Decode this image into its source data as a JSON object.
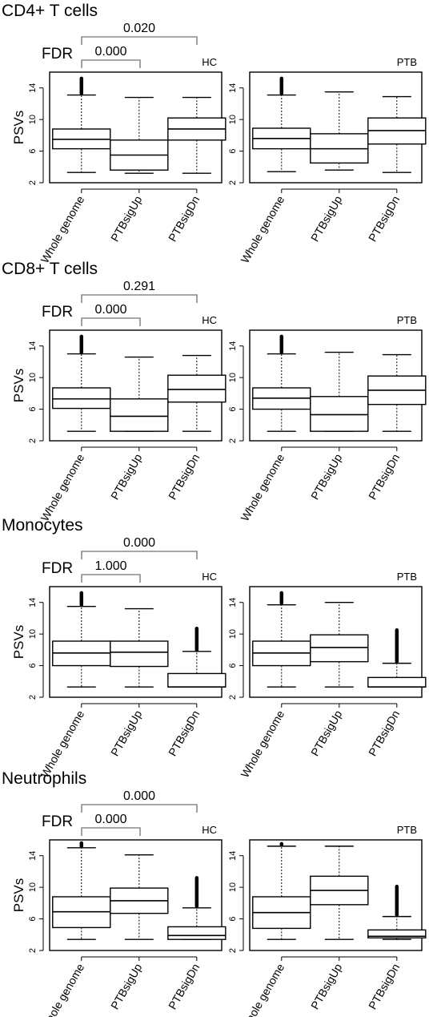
{
  "figure": {
    "fdr_label": "FDR",
    "ylabel": "PSVs",
    "categories": [
      "Whole genome",
      "PTBsigUp",
      "PTBsigDn"
    ],
    "panel_labels": [
      "HC",
      "PTB"
    ],
    "y_ticks": [
      2,
      6,
      10,
      14
    ],
    "ylim": [
      2,
      16
    ]
  },
  "chart_data": [
    {
      "type": "box",
      "title": "CD4+ T cells",
      "fdr": {
        "PTBsigUp": "0.000",
        "PTBsigDn": "0.020"
      },
      "panels": [
        {
          "label": "HC",
          "boxes": [
            {
              "category": "Whole genome",
              "whisker_low": 3.3,
              "q1": 6.3,
              "median": 7.5,
              "q3": 8.8,
              "whisker_high": 13.1,
              "outliers_to": 15.2
            },
            {
              "category": "PTBsigUp",
              "whisker_low": 3.2,
              "q1": 3.6,
              "median": 5.5,
              "q3": 7.4,
              "whisker_high": 12.8
            },
            {
              "category": "PTBsigDn",
              "whisker_low": 3.2,
              "q1": 7.4,
              "median": 8.8,
              "q3": 10.2,
              "whisker_high": 12.8
            }
          ]
        },
        {
          "label": "PTB",
          "boxes": [
            {
              "category": "Whole genome",
              "whisker_low": 3.4,
              "q1": 6.3,
              "median": 7.6,
              "q3": 8.9,
              "whisker_high": 13.1,
              "outliers_to": 15.2
            },
            {
              "category": "PTBsigUp",
              "whisker_low": 3.6,
              "q1": 4.5,
              "median": 6.3,
              "q3": 8.2,
              "whisker_high": 13.5
            },
            {
              "category": "PTBsigDn",
              "whisker_low": 3.3,
              "q1": 6.9,
              "median": 8.6,
              "q3": 10.2,
              "whisker_high": 12.9
            }
          ]
        }
      ]
    },
    {
      "type": "box",
      "title": "CD8+ T cells",
      "fdr": {
        "PTBsigUp": "0.000",
        "PTBsigDn": "0.291"
      },
      "panels": [
        {
          "label": "HC",
          "boxes": [
            {
              "category": "Whole genome",
              "whisker_low": 3.2,
              "q1": 6.1,
              "median": 7.3,
              "q3": 8.7,
              "whisker_high": 13.0,
              "outliers_to": 15.2
            },
            {
              "category": "PTBsigUp",
              "whisker_low": 3.2,
              "q1": 3.2,
              "median": 5.1,
              "q3": 7.3,
              "whisker_high": 12.6
            },
            {
              "category": "PTBsigDn",
              "whisker_low": 3.2,
              "q1": 6.9,
              "median": 8.5,
              "q3": 10.3,
              "whisker_high": 12.8
            }
          ]
        },
        {
          "label": "PTB",
          "boxes": [
            {
              "category": "Whole genome",
              "whisker_low": 3.2,
              "q1": 6.0,
              "median": 7.4,
              "q3": 8.7,
              "whisker_high": 13.0,
              "outliers_to": 15.2
            },
            {
              "category": "PTBsigUp",
              "whisker_low": 3.2,
              "q1": 3.2,
              "median": 5.3,
              "q3": 7.6,
              "whisker_high": 13.2
            },
            {
              "category": "PTBsigDn",
              "whisker_low": 3.2,
              "q1": 6.6,
              "median": 8.4,
              "q3": 10.2,
              "whisker_high": 12.9
            }
          ]
        }
      ]
    },
    {
      "type": "box",
      "title": "Monocytes",
      "fdr": {
        "PTBsigUp": "1.000",
        "PTBsigDn": "0.000"
      },
      "panels": [
        {
          "label": "HC",
          "boxes": [
            {
              "category": "Whole genome",
              "whisker_low": 3.3,
              "q1": 6.0,
              "median": 7.6,
              "q3": 9.1,
              "whisker_high": 13.5,
              "outliers_to": 15.2
            },
            {
              "category": "PTBsigUp",
              "whisker_low": 3.3,
              "q1": 5.9,
              "median": 7.7,
              "q3": 9.1,
              "whisker_high": 13.2
            },
            {
              "category": "PTBsigDn",
              "whisker_low": 3.3,
              "q1": 3.3,
              "median": 3.3,
              "q3": 5.0,
              "whisker_high": 7.8,
              "outliers_to": 10.7
            }
          ]
        },
        {
          "label": "PTB",
          "boxes": [
            {
              "category": "Whole genome",
              "whisker_low": 3.3,
              "q1": 6.0,
              "median": 7.6,
              "q3": 9.1,
              "whisker_high": 13.7,
              "outliers_to": 15.2
            },
            {
              "category": "PTBsigUp",
              "whisker_low": 3.3,
              "q1": 6.5,
              "median": 8.3,
              "q3": 9.9,
              "whisker_high": 14.0
            },
            {
              "category": "PTBsigDn",
              "whisker_low": 3.3,
              "q1": 3.3,
              "median": 3.3,
              "q3": 4.5,
              "whisker_high": 6.3,
              "outliers_to": 10.5
            }
          ]
        }
      ]
    },
    {
      "type": "box",
      "title": "Neutrophils",
      "fdr": {
        "PTBsigUp": "0.000",
        "PTBsigDn": "0.000"
      },
      "panels": [
        {
          "label": "HC",
          "boxes": [
            {
              "category": "Whole genome",
              "whisker_low": 3.4,
              "q1": 4.9,
              "median": 6.9,
              "q3": 8.8,
              "whisker_high": 15.0,
              "outliers_to": 15.6
            },
            {
              "category": "PTBsigUp",
              "whisker_low": 3.4,
              "q1": 6.7,
              "median": 8.3,
              "q3": 9.9,
              "whisker_high": 14.1
            },
            {
              "category": "PTBsigDn",
              "whisker_low": 3.4,
              "q1": 3.4,
              "median": 3.9,
              "q3": 5.0,
              "whisker_high": 7.4,
              "outliers_to": 11.2
            }
          ]
        },
        {
          "label": "PTB",
          "boxes": [
            {
              "category": "Whole genome",
              "whisker_low": 3.4,
              "q1": 4.8,
              "median": 6.8,
              "q3": 8.8,
              "whisker_high": 15.2,
              "outliers_to": 15.5
            },
            {
              "category": "PTBsigUp",
              "whisker_low": 3.4,
              "q1": 7.8,
              "median": 9.6,
              "q3": 11.4,
              "whisker_high": 15.2
            },
            {
              "category": "PTBsigDn",
              "whisker_low": 3.4,
              "q1": 3.6,
              "median": 3.8,
              "q3": 4.6,
              "whisker_high": 6.3,
              "outliers_to": 10.1
            }
          ]
        }
      ]
    }
  ]
}
